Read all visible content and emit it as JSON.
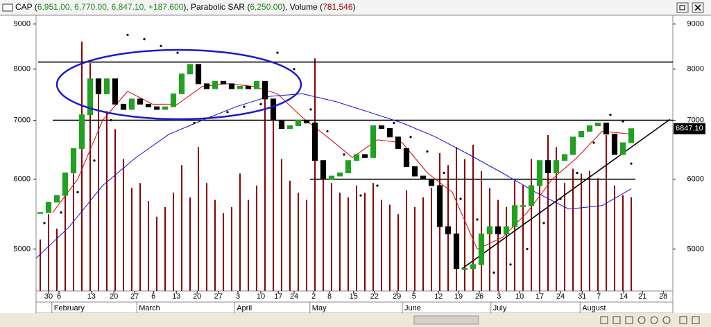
{
  "header": {
    "segments": [
      {
        "text": "CAP (",
        "color": "#000000"
      },
      {
        "text": "6,951.00, 6,770.00, 6,847.10, +187.600",
        "color": "#1a8a1a"
      },
      {
        "text": "), Parabolic SAR (",
        "color": "#000000"
      },
      {
        "text": "6,250.00",
        "color": "#1a8a1a"
      },
      {
        "text": "), Volume (",
        "color": "#000000"
      },
      {
        "text": "781,546",
        "color": "#a00000"
      },
      {
        "text": ")",
        "color": "#000000"
      }
    ]
  },
  "chart_data": {
    "type": "candlestick",
    "log_scale": true,
    "ylim": [
      4480,
      9210
    ],
    "yticks": [
      5000,
      6000,
      7000,
      8000,
      9000
    ],
    "xlim": [
      0,
      153
    ],
    "xticks": [
      {
        "value": 3,
        "label": "30"
      },
      {
        "value": 5.5,
        "label": "6"
      },
      {
        "value": 13.3,
        "label": "13"
      },
      {
        "value": 18.7,
        "label": "20"
      },
      {
        "value": 23.7,
        "label": "27"
      },
      {
        "value": 28.2,
        "label": "6"
      },
      {
        "value": 33.7,
        "label": "13"
      },
      {
        "value": 38.7,
        "label": "20"
      },
      {
        "value": 43.8,
        "label": "27"
      },
      {
        "value": 48.5,
        "label": "3"
      },
      {
        "value": 54,
        "label": "10"
      },
      {
        "value": 58.2,
        "label": "17"
      },
      {
        "value": 62,
        "label": "24"
      },
      {
        "value": 66.7,
        "label": "2"
      },
      {
        "value": 70.5,
        "label": "8"
      },
      {
        "value": 76.3,
        "label": "15"
      },
      {
        "value": 81.3,
        "label": "22"
      },
      {
        "value": 86.7,
        "label": "29"
      },
      {
        "value": 90.8,
        "label": "5"
      },
      {
        "value": 96.7,
        "label": "12"
      },
      {
        "value": 101.5,
        "label": "19"
      },
      {
        "value": 106.5,
        "label": "26"
      },
      {
        "value": 111.2,
        "label": "3"
      },
      {
        "value": 116.2,
        "label": "10"
      },
      {
        "value": 121,
        "label": "17"
      },
      {
        "value": 126,
        "label": "24"
      },
      {
        "value": 131.2,
        "label": "31"
      },
      {
        "value": 135.2,
        "label": "7"
      },
      {
        "value": 141.2,
        "label": "14"
      },
      {
        "value": 145.7,
        "label": "21"
      },
      {
        "value": 150.7,
        "label": "28"
      }
    ],
    "months": [
      {
        "value": 3.8,
        "label": "February"
      },
      {
        "value": 24.2,
        "label": "March"
      },
      {
        "value": 47.7,
        "label": "April"
      },
      {
        "value": 65.8,
        "label": "May"
      },
      {
        "value": 88,
        "label": "June"
      },
      {
        "value": 109.3,
        "label": "July"
      },
      {
        "value": 130.7,
        "label": "August"
      }
    ],
    "x": [
      1,
      3,
      5,
      7,
      9,
      11,
      13,
      15,
      17,
      19,
      21,
      23,
      25,
      27,
      29,
      31,
      33,
      35,
      37,
      39,
      41,
      43,
      45,
      47,
      49,
      51,
      53,
      55,
      57,
      59,
      61,
      63,
      65,
      67,
      69,
      71,
      73,
      75,
      77,
      79,
      81,
      83,
      85,
      87,
      89,
      91,
      93,
      95,
      97,
      99,
      101,
      103,
      105,
      107,
      109,
      111,
      113,
      115,
      117,
      119,
      121,
      123,
      125,
      127,
      129,
      131,
      133,
      135,
      137,
      139,
      141,
      143
    ],
    "close": [
      5500,
      5650,
      5750,
      6100,
      6500,
      7100,
      7800,
      7500,
      7800,
      7300,
      7200,
      7400,
      7300,
      7250,
      7200,
      7250,
      7500,
      7900,
      8100,
      7700,
      7600,
      7750,
      7700,
      7600,
      7650,
      7600,
      7750,
      7400,
      7000,
      6850,
      6900,
      7000,
      6950,
      6300,
      6000,
      6050,
      6100,
      6300,
      6400,
      6350,
      6900,
      6850,
      6700,
      6500,
      6200,
      6050,
      6000,
      5900,
      5300,
      5200,
      4750,
      4750,
      4800,
      5200,
      5300,
      5200,
      5300,
      5600,
      5600,
      5900,
      6300,
      6100,
      6300,
      6400,
      6700,
      6800,
      6900,
      6950,
      6750,
      6400,
      6600,
      6847.1
    ],
    "up_color": "#22a022",
    "down_color": "#000000",
    "volume": [
      430000,
      640000,
      520000,
      810000,
      980000,
      2080000,
      1900000,
      1700000,
      1500000,
      1350000,
      1100000,
      860000,
      900000,
      750000,
      620000,
      700000,
      820000,
      1050000,
      780000,
      1200000,
      900000,
      760000,
      650000,
      700000,
      980000,
      760000,
      880000,
      1730000,
      1450000,
      1100000,
      920000,
      820000,
      760000,
      1940000,
      1000000,
      900000,
      820000,
      780000,
      880000,
      820000,
      900000,
      760000,
      720000,
      640000,
      840000,
      700000,
      780000,
      860000,
      1150000,
      1050000,
      1200000,
      1100000,
      1220000,
      1000000,
      860000,
      760000,
      700000,
      920000,
      880000,
      1100000,
      1050000,
      1300000,
      1200000,
      900000,
      1020000,
      980000,
      1000000,
      940000,
      1300000,
      880000,
      800000,
      781546
    ],
    "volume_lim": [
      0,
      2300000
    ],
    "volume_color": "#8b0000",
    "averages": [
      {
        "color": "#e00000",
        "x": [
          4,
          10,
          16,
          22,
          28,
          34,
          40,
          46,
          52,
          58,
          64,
          70,
          76,
          82,
          88,
          94,
          100,
          106,
          112,
          118,
          124,
          130,
          136,
          143
        ],
        "values": [
          5500,
          6000,
          7000,
          7550,
          7300,
          7300,
          7650,
          7700,
          7650,
          7500,
          7050,
          6700,
          6350,
          6650,
          6600,
          6100,
          5800,
          5000,
          5150,
          5500,
          6000,
          6350,
          6800,
          6750
        ]
      },
      {
        "color": "#1010d0",
        "x": [
          0,
          8,
          16,
          24,
          32,
          40,
          48,
          56,
          64,
          72,
          80,
          88,
          96,
          104,
          112,
          120,
          128,
          136,
          143
        ],
        "values": [
          4880,
          5300,
          5900,
          6350,
          6750,
          7000,
          7250,
          7450,
          7500,
          7350,
          7150,
          6950,
          6700,
          6400,
          6100,
          5800,
          5550,
          5600,
          5850
        ]
      }
    ],
    "sar": {
      "color": "#000000",
      "x": [
        2,
        6,
        10,
        14,
        18,
        22,
        26,
        30,
        34,
        38,
        42,
        46,
        50,
        54,
        58,
        62,
        66,
        70,
        74,
        78,
        82,
        86,
        90,
        94,
        98,
        102,
        106,
        110,
        114,
        118,
        122,
        126,
        130,
        134,
        138,
        141,
        143
      ],
      "values": [
        5350,
        5500,
        5800,
        6300,
        7000,
        8750,
        8650,
        8500,
        8350,
        6950,
        7050,
        7150,
        7250,
        7300,
        8350,
        8000,
        7200,
        6800,
        6400,
        5750,
        5900,
        6950,
        6700,
        6450,
        6100,
        5700,
        5400,
        4700,
        4800,
        5000,
        5350,
        5700,
        6100,
        6600,
        7100,
        6980,
        6250
      ]
    },
    "lines": [
      {
        "x": [
          0.5,
          153
        ],
        "y": [
          8150,
          8150
        ]
      },
      {
        "x": [
          4,
          153
        ],
        "y": [
          7000,
          7000
        ]
      },
      {
        "x": [
          65.8,
          144
        ],
        "y": [
          6000,
          6000
        ]
      },
      {
        "x": [
          102.3,
          152.3
        ],
        "y": [
          4747,
          7015
        ]
      }
    ],
    "last_label": "6847.10"
  }
}
